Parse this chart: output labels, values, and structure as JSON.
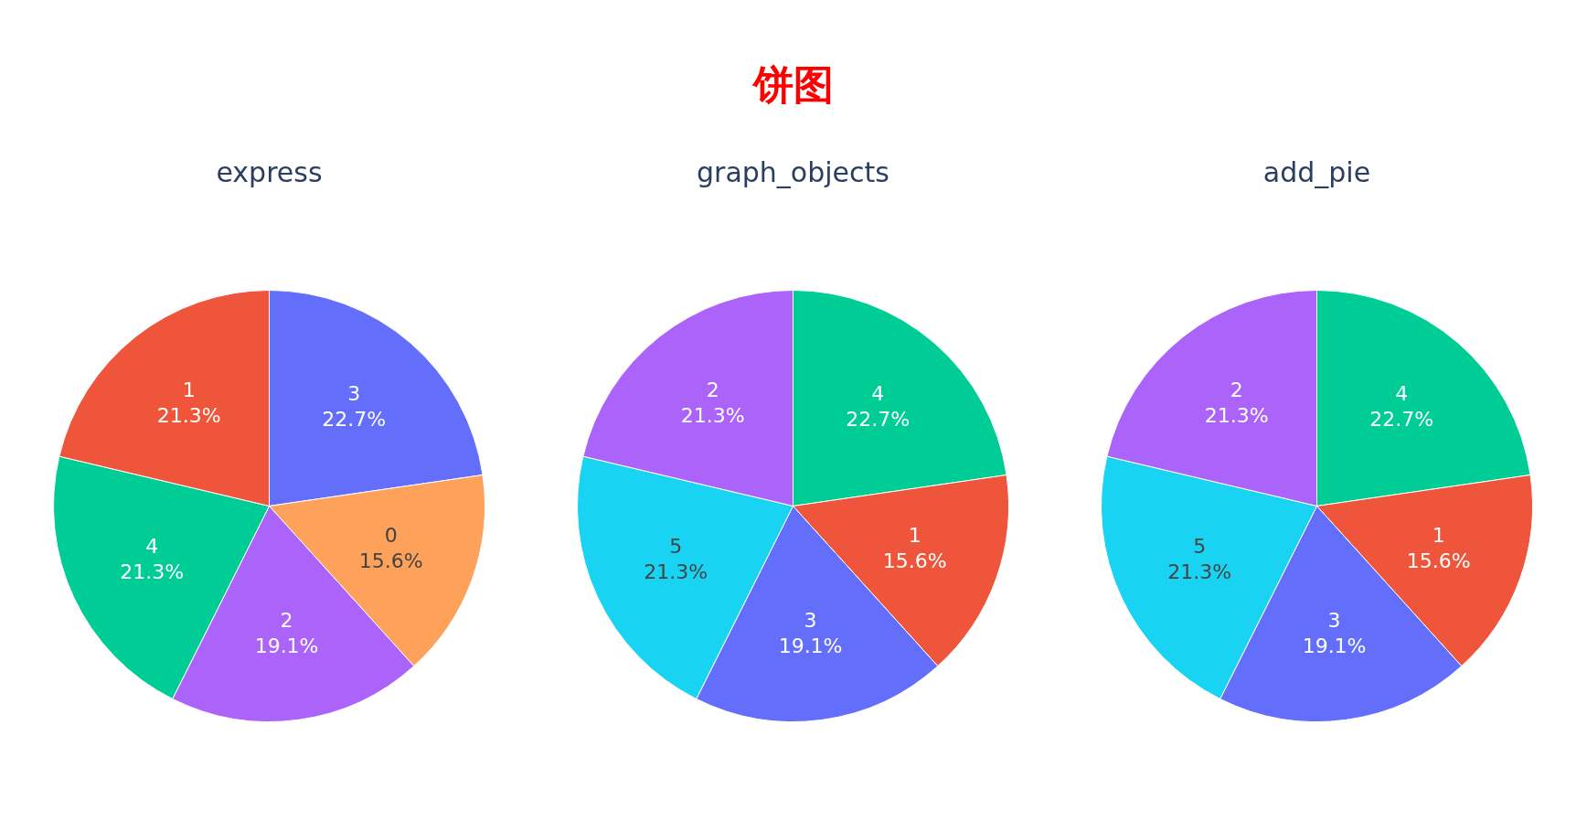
{
  "chart_data": [
    {
      "type": "other",
      "title": "饼图"
    },
    {
      "type": "pie",
      "title": "express",
      "categories": [
        "3",
        "0",
        "2",
        "4",
        "1"
      ],
      "values": [
        22.7,
        15.6,
        19.1,
        21.3,
        21.3
      ],
      "colors": [
        "#636efa",
        "#fea15a",
        "#ab63fa",
        "#00cc96",
        "#ef553b"
      ],
      "value_labels": [
        "22.7%",
        "15.6%",
        "19.1%",
        "21.3%",
        "21.3%"
      ]
    },
    {
      "type": "pie",
      "title": "graph_objects",
      "categories": [
        "4",
        "1",
        "3",
        "5",
        "2"
      ],
      "values": [
        22.7,
        15.6,
        19.1,
        21.3,
        21.3
      ],
      "colors": [
        "#00cc96",
        "#ef553b",
        "#636efa",
        "#19d3f3",
        "#ab63fa"
      ],
      "value_labels": [
        "22.7%",
        "15.6%",
        "19.1%",
        "21.3%",
        "21.3%"
      ]
    },
    {
      "type": "pie",
      "title": "add_pie",
      "categories": [
        "4",
        "1",
        "3",
        "5",
        "2"
      ],
      "values": [
        22.7,
        15.6,
        19.1,
        21.3,
        21.3
      ],
      "colors": [
        "#00cc96",
        "#ef553b",
        "#636efa",
        "#19d3f3",
        "#ab63fa"
      ],
      "value_labels": [
        "22.7%",
        "15.6%",
        "19.1%",
        "21.3%",
        "21.3%"
      ]
    }
  ]
}
